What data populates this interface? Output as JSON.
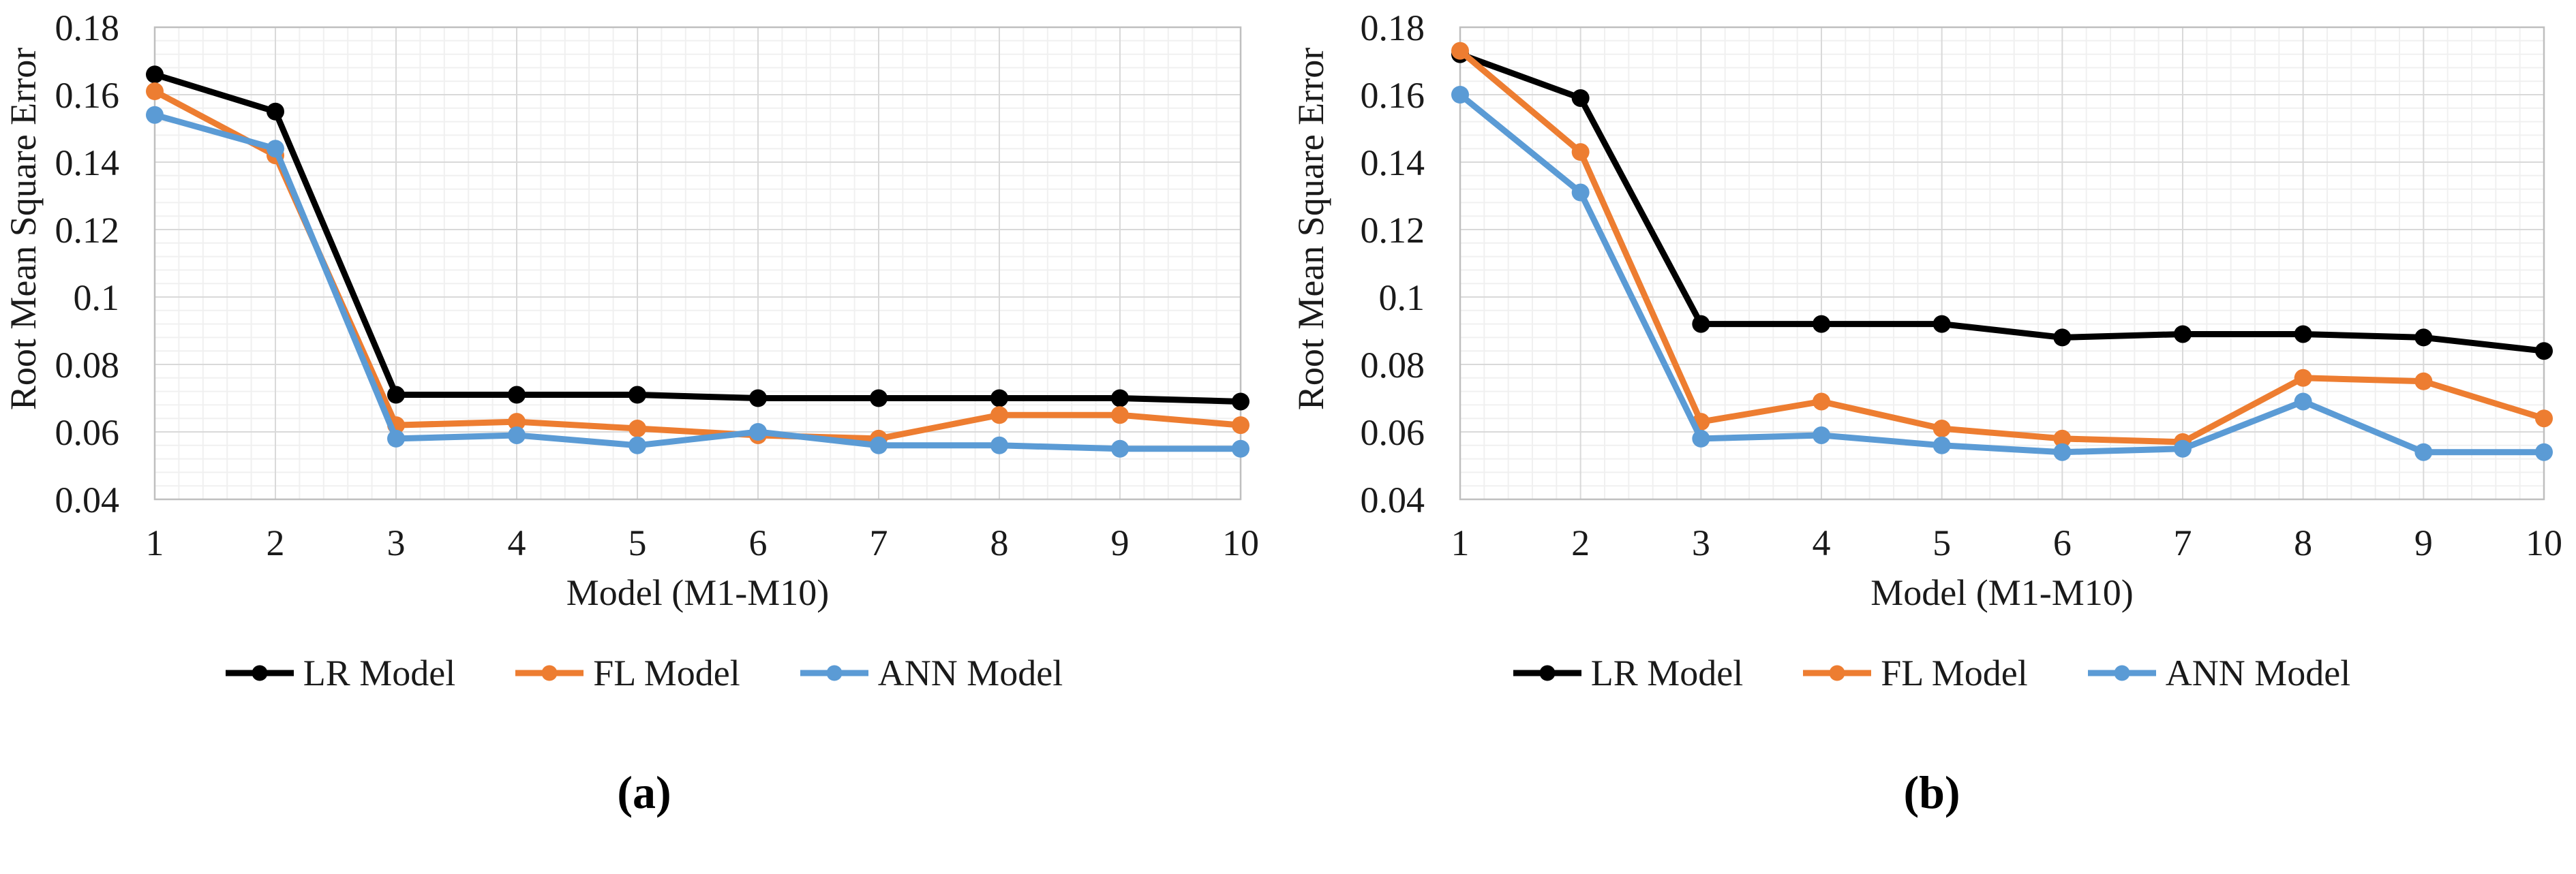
{
  "figure": {
    "background": "#ffffff",
    "text_color": "#1a1a1a",
    "grid_major_color": "#d9d9d9",
    "grid_minor_color": "#f0f0f0",
    "axis_border_color": "#bfbfbf"
  },
  "chart_data": [
    {
      "type": "line",
      "caption": "(a)",
      "title": "",
      "xlabel": "Model (M1-M10)",
      "ylabel": "Root Mean Square Error",
      "x": [
        1,
        2,
        3,
        4,
        5,
        6,
        7,
        8,
        9,
        10
      ],
      "x_tick_labels": [
        "1",
        "2",
        "3",
        "4",
        "5",
        "6",
        "7",
        "8",
        "9",
        "10"
      ],
      "y_tick_labels": [
        "0.18",
        "0.16",
        "0.14",
        "0.12",
        "0.1",
        "0.08",
        "0.06",
        "0.04"
      ],
      "ylim": [
        0.04,
        0.18
      ],
      "y_major_step": 0.02,
      "grid": true,
      "legend_position": "bottom",
      "series": [
        {
          "name": "LR Model",
          "color": "#000000",
          "values": [
            0.166,
            0.155,
            0.071,
            0.071,
            0.071,
            0.07,
            0.07,
            0.07,
            0.07,
            0.069
          ]
        },
        {
          "name": "FL Model",
          "color": "#ED7D31",
          "values": [
            0.161,
            0.142,
            0.062,
            0.063,
            0.061,
            0.059,
            0.058,
            0.065,
            0.065,
            0.062
          ]
        },
        {
          "name": "ANN Model",
          "color": "#5B9BD5",
          "values": [
            0.154,
            0.144,
            0.058,
            0.059,
            0.056,
            0.06,
            0.056,
            0.056,
            0.055,
            0.055
          ]
        }
      ]
    },
    {
      "type": "line",
      "caption": "(b)",
      "title": "",
      "xlabel": "Model (M1-M10)",
      "ylabel": "Root Mean Square Error",
      "x": [
        1,
        2,
        3,
        4,
        5,
        6,
        7,
        8,
        9,
        10
      ],
      "x_tick_labels": [
        "1",
        "2",
        "3",
        "4",
        "5",
        "6",
        "7",
        "8",
        "9",
        "10"
      ],
      "y_tick_labels": [
        "0.18",
        "0.16",
        "0.14",
        "0.12",
        "0.1",
        "0.08",
        "0.06",
        "0.04"
      ],
      "ylim": [
        0.04,
        0.18
      ],
      "y_major_step": 0.02,
      "grid": true,
      "legend_position": "bottom",
      "series": [
        {
          "name": "LR Model",
          "color": "#000000",
          "values": [
            0.172,
            0.159,
            0.092,
            0.092,
            0.092,
            0.088,
            0.089,
            0.089,
            0.088,
            0.084
          ]
        },
        {
          "name": "FL Model",
          "color": "#ED7D31",
          "values": [
            0.173,
            0.143,
            0.063,
            0.069,
            0.061,
            0.058,
            0.057,
            0.076,
            0.075,
            0.064
          ]
        },
        {
          "name": "ANN Model",
          "color": "#5B9BD5",
          "values": [
            0.16,
            0.131,
            0.058,
            0.059,
            0.056,
            0.054,
            0.055,
            0.069,
            0.054,
            0.054
          ]
        }
      ]
    }
  ]
}
